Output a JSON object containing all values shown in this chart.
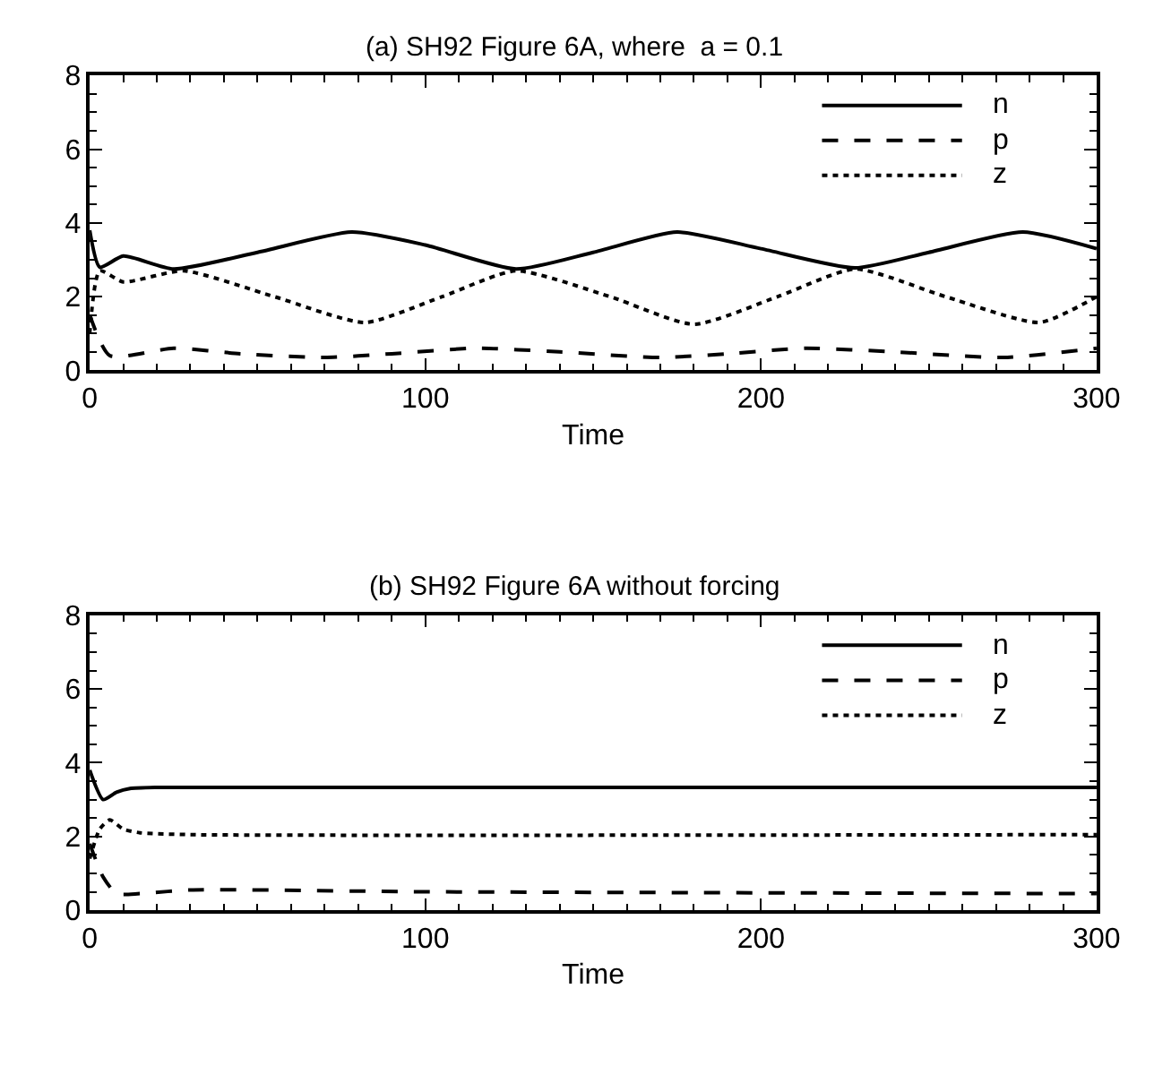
{
  "chart_data": [
    {
      "type": "line",
      "title": "(a) SH92 Figure 6A, where  a = 0.1",
      "xlabel": "Time",
      "xlim": [
        0,
        300
      ],
      "xticks": [
        0,
        100,
        200,
        300
      ],
      "ylim": [
        0,
        8
      ],
      "yticks": [
        0,
        2,
        4,
        6,
        8
      ],
      "legend": "top right",
      "marker": "none",
      "series": [
        {
          "name": "n",
          "color": "#000000",
          "line_style": "solid",
          "x": [
            0,
            3,
            10,
            25,
            50,
            78,
            100,
            127,
            150,
            175,
            200,
            228,
            250,
            278,
            300
          ],
          "values": [
            3.8,
            2.8,
            3.1,
            2.75,
            3.2,
            3.75,
            3.4,
            2.75,
            3.2,
            3.75,
            3.3,
            2.78,
            3.2,
            3.75,
            3.3
          ]
        },
        {
          "name": "p",
          "color": "#000000",
          "line_style": "dashed",
          "x": [
            0,
            6,
            25,
            45,
            70,
            90,
            115,
            140,
            170,
            190,
            213,
            240,
            272,
            300
          ],
          "values": [
            1.5,
            0.4,
            0.6,
            0.45,
            0.35,
            0.45,
            0.6,
            0.5,
            0.35,
            0.45,
            0.6,
            0.5,
            0.35,
            0.6
          ]
        },
        {
          "name": "z",
          "color": "#000000",
          "line_style": "dotted",
          "x": [
            0,
            3,
            10,
            28,
            55,
            82,
            105,
            127,
            155,
            180,
            205,
            228,
            255,
            283,
            300
          ],
          "values": [
            1.0,
            2.7,
            2.4,
            2.7,
            2.0,
            1.3,
            2.0,
            2.7,
            2.0,
            1.25,
            2.0,
            2.75,
            2.0,
            1.3,
            2.0
          ]
        }
      ]
    },
    {
      "type": "line",
      "title": "(b) SH92 Figure 6A without forcing",
      "xlabel": "Time",
      "xlim": [
        0,
        300
      ],
      "xticks": [
        0,
        100,
        200,
        300
      ],
      "ylim": [
        0,
        8
      ],
      "yticks": [
        0,
        2,
        4,
        6,
        8
      ],
      "legend": "top right",
      "marker": "none",
      "series": [
        {
          "name": "n",
          "color": "#000000",
          "line_style": "solid",
          "x": [
            0,
            4,
            8,
            12,
            20,
            300
          ],
          "values": [
            3.8,
            3.0,
            3.2,
            3.3,
            3.33,
            3.33
          ]
        },
        {
          "name": "p",
          "color": "#000000",
          "line_style": "dashed",
          "x": [
            0,
            4,
            8,
            15,
            30,
            100,
            300
          ],
          "values": [
            1.8,
            0.9,
            0.45,
            0.45,
            0.55,
            0.5,
            0.45
          ]
        },
        {
          "name": "z",
          "color": "#000000",
          "line_style": "dotted",
          "x": [
            0,
            3,
            6,
            10,
            15,
            30,
            300
          ],
          "values": [
            1.4,
            2.2,
            2.45,
            2.2,
            2.1,
            2.05,
            2.05
          ]
        }
      ]
    }
  ]
}
